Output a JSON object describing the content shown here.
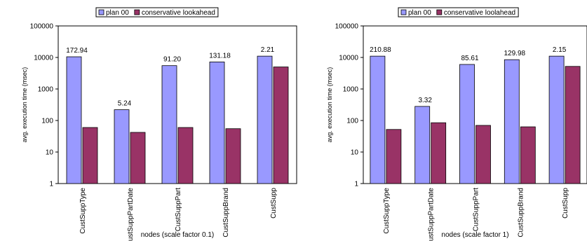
{
  "colors": {
    "series_a": "#9999ff",
    "series_b": "#993366",
    "border": "#000000"
  },
  "chart_data": [
    {
      "type": "bar",
      "scale": "log",
      "title": "",
      "xlabel": "nodes (scale factor 0.1)",
      "ylabel": "avg. execution time (msec)",
      "ylim": [
        1,
        100000
      ],
      "yticks": [
        "1",
        "10",
        "100",
        "1000",
        "10000",
        "100000"
      ],
      "categories": [
        "CustSuppType",
        "CustSuppPartDate",
        "CustSuppPart",
        "CustSuppBrand",
        "CustSupp"
      ],
      "series": [
        {
          "name": "plan 00",
          "values": [
            10500,
            220,
            5500,
            7200,
            11000
          ]
        },
        {
          "name": "conservative lookahead",
          "values": [
            60,
            42,
            60,
            55,
            5000
          ]
        }
      ],
      "data_labels": [
        "172.94",
        "5.24",
        "91.20",
        "131.18",
        "2.21"
      ],
      "legend": "top-center",
      "grid": false
    },
    {
      "type": "bar",
      "scale": "log",
      "title": "",
      "xlabel": "nodes (scale factor 1)",
      "ylabel": "avg. execution time (msec)",
      "ylim": [
        1,
        100000
      ],
      "yticks": [
        "1",
        "10",
        "100",
        "1000",
        "10000",
        "100000"
      ],
      "categories": [
        "CustSuppType",
        "CustSuppPartDate",
        "CustSuppPart",
        "CustSuppBrand",
        "CustSupp"
      ],
      "series": [
        {
          "name": "plan 00",
          "values": [
            11000,
            280,
            6000,
            8500,
            11000
          ]
        },
        {
          "name": "conservative loolahead",
          "values": [
            52,
            85,
            70,
            63,
            5200
          ]
        }
      ],
      "data_labels": [
        "210.88",
        "3.32",
        "85.61",
        "129.98",
        "2.15"
      ],
      "legend": "top-center",
      "grid": false
    }
  ]
}
